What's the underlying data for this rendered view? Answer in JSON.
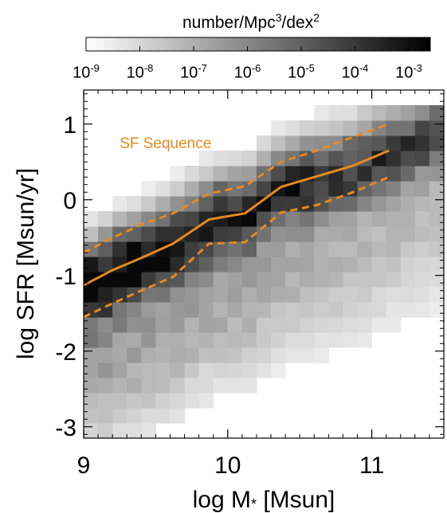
{
  "chart_data": {
    "type": "heatmap",
    "xlabel_parts": {
      "pre": "log M",
      "sub": "*",
      "post": " [Msun]"
    },
    "ylabel": "log SFR [Msun/yr]",
    "xlim": [
      9.0,
      11.5
    ],
    "ylim": [
      -3.15,
      1.45
    ],
    "x_ticks": [
      {
        "value": 9,
        "label": "9"
      },
      {
        "value": 10,
        "label": "10"
      },
      {
        "value": 11,
        "label": "11"
      }
    ],
    "y_ticks": [
      {
        "value": -3,
        "label": "-3"
      },
      {
        "value": -2,
        "label": "-2"
      },
      {
        "value": -1,
        "label": "-1"
      },
      {
        "value": 0,
        "label": "0"
      },
      {
        "value": 1,
        "label": "1"
      }
    ],
    "colorbar": {
      "title_parts": {
        "base": "number/Mpc",
        "sup1": "3",
        "mid": "/dex",
        "sup2": "2"
      },
      "scale": "log",
      "range_exp": [
        -9,
        -2.6
      ],
      "colormap": "white-to-black",
      "ticks": [
        {
          "exp": -9,
          "base": "10",
          "sup": "-9"
        },
        {
          "exp": -8,
          "base": "10",
          "sup": "-8"
        },
        {
          "exp": -7,
          "base": "10",
          "sup": "-7"
        },
        {
          "exp": -6,
          "base": "10",
          "sup": "-6"
        },
        {
          "exp": -5,
          "base": "10",
          "sup": "-5"
        },
        {
          "exp": -4,
          "base": "10",
          "sup": "-4"
        },
        {
          "exp": -3,
          "base": "10",
          "sup": "-3"
        }
      ]
    },
    "heatmap": {
      "x_edges_start": 9.0,
      "x_bin_width": 0.1,
      "y_edges_start": -3.15,
      "y_bin_width": 0.2,
      "x_bins": 25,
      "y_bins": 22,
      "description_key": "log10 number density per bin, computed in script from ridge model"
    },
    "series": [
      {
        "name": "SF Sequence",
        "color": "#e58a1f",
        "style": "solid",
        "x": [
          9.0,
          9.2,
          9.4,
          9.62,
          9.87,
          10.12,
          10.37,
          10.62,
          10.87,
          11.12
        ],
        "y": [
          -1.13,
          -0.93,
          -0.77,
          -0.58,
          -0.26,
          -0.18,
          0.17,
          0.31,
          0.45,
          0.65
        ]
      },
      {
        "name": "",
        "color": "#e58a1f",
        "style": "dashed",
        "x": [
          9.0,
          9.2,
          9.4,
          9.62,
          9.87,
          10.12,
          10.37,
          10.62,
          10.87,
          11.12
        ],
        "y": [
          -0.7,
          -0.5,
          -0.33,
          -0.18,
          0.08,
          0.18,
          0.5,
          0.65,
          0.83,
          1.0
        ]
      },
      {
        "name": "",
        "color": "#e58a1f",
        "style": "dashed",
        "x": [
          9.0,
          9.2,
          9.4,
          9.62,
          9.87,
          10.12,
          10.37,
          10.62,
          10.87,
          11.12
        ],
        "y": [
          -1.55,
          -1.37,
          -1.2,
          -1.02,
          -0.58,
          -0.56,
          -0.17,
          -0.07,
          0.1,
          0.3
        ]
      }
    ],
    "annotation": {
      "text": "SF Sequence",
      "x": 9.25,
      "y": 0.68,
      "color": "#e58a1f"
    },
    "legend": "none",
    "grid": false
  }
}
